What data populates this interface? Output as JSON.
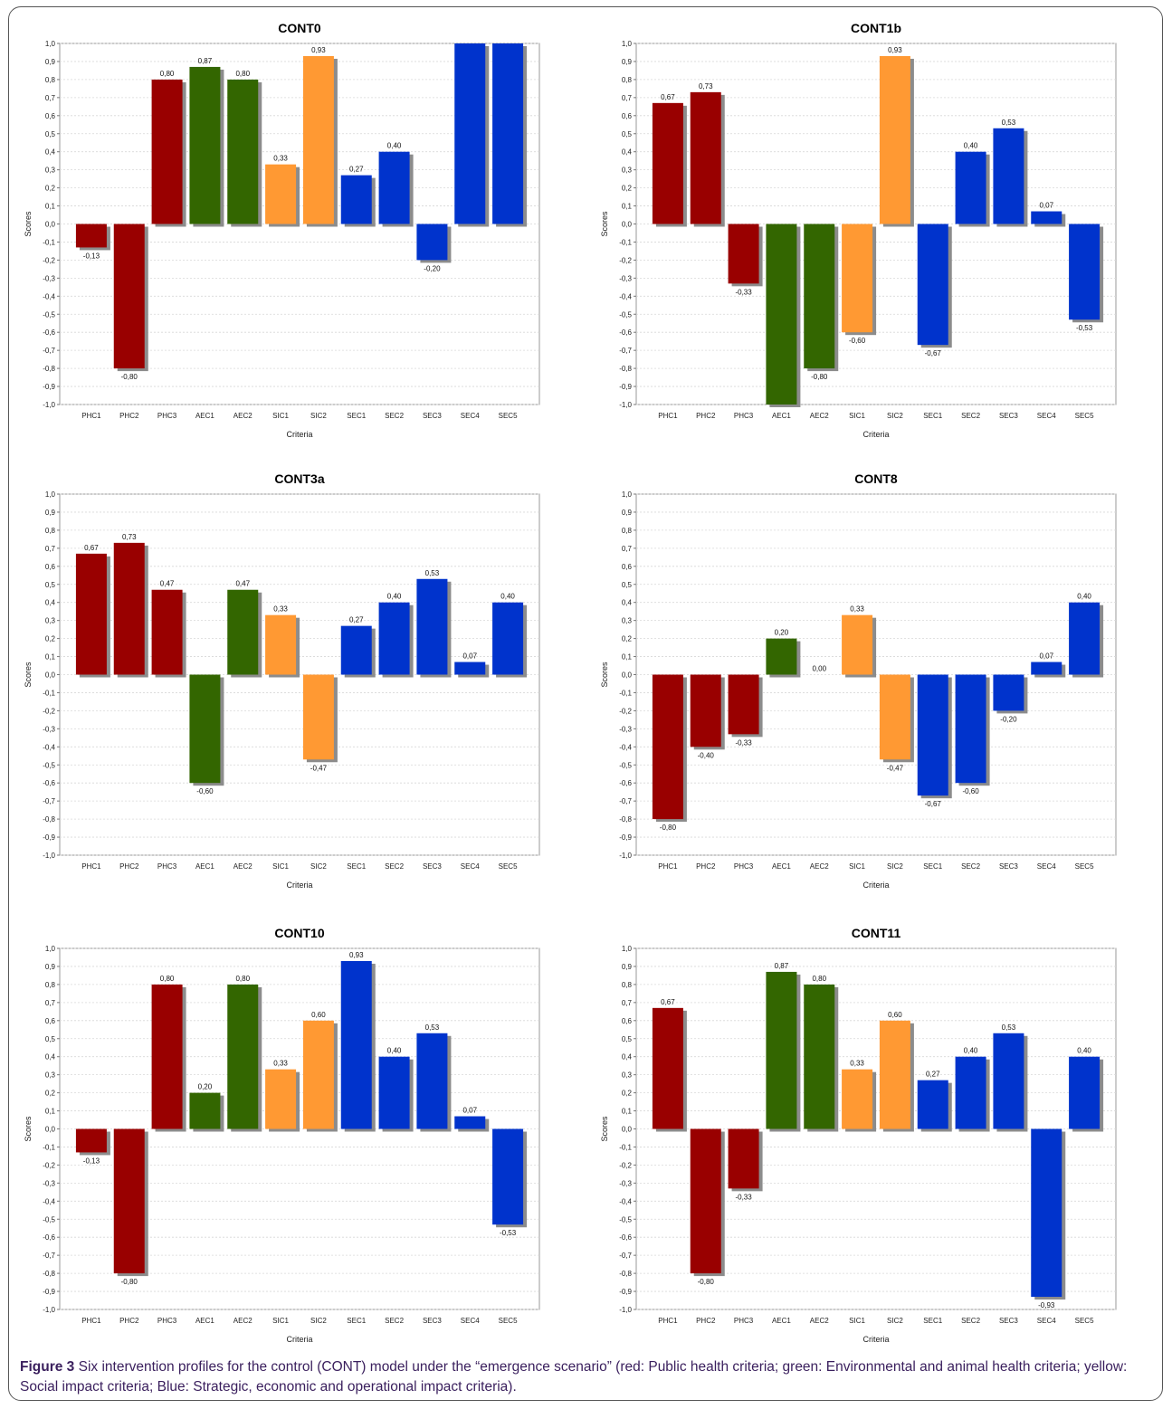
{
  "figure": {
    "label": "Figure 3",
    "caption": "Six intervention profiles for the control (CONT) model under the “emergence scenario” (red: Public health criteria; green: Environmental and animal health criteria; yellow: Social impact criteria; Blue: Strategic, economic and operational impact criteria)."
  },
  "colors": {
    "public_health": "#990000",
    "environmental_animal_health": "#336600",
    "social_impact": "#ff9933",
    "strategic_economic_operational": "#0033cc",
    "bar_shadow": "#8c8c8c",
    "grid": "#d8d8d8"
  },
  "axis_ticks": [
    "1,0",
    "0,9",
    "0,8",
    "0,7",
    "0,6",
    "0,5",
    "0,4",
    "0,3",
    "0,2",
    "0,1",
    "0,0",
    "-0,1",
    "-0,2",
    "-0,3",
    "-0,4",
    "-0,5",
    "-0,6",
    "-0,7",
    "-0,8",
    "-0,9",
    "-1,0"
  ],
  "chart_data": [
    {
      "type": "bar",
      "title": "CONT0",
      "xlabel": "Criteria",
      "ylabel": "Scores",
      "ylim": [
        -1,
        1
      ],
      "categories": [
        "PHC1",
        "PHC2",
        "PHC3",
        "AEC1",
        "AEC2",
        "SIC1",
        "SIC2",
        "SEC1",
        "SEC2",
        "SEC3",
        "SEC4",
        "SEC5"
      ],
      "values": [
        -0.13,
        -0.8,
        0.8,
        0.87,
        0.8,
        0.33,
        0.93,
        0.27,
        0.4,
        -0.2,
        1.0,
        1.0
      ],
      "labels": [
        "-0,13",
        "-0,80",
        "0,80",
        "0,87",
        "0,80",
        "0,33",
        "0,93",
        "0,27",
        "0,40",
        "-0,20",
        "",
        ""
      ],
      "groups": [
        "public_health",
        "public_health",
        "public_health",
        "environmental_animal_health",
        "environmental_animal_health",
        "social_impact",
        "social_impact",
        "strategic_economic_operational",
        "strategic_economic_operational",
        "strategic_economic_operational",
        "strategic_economic_operational",
        "strategic_economic_operational"
      ]
    },
    {
      "type": "bar",
      "title": "CONT1b",
      "xlabel": "Criteria",
      "ylabel": "Scores",
      "ylim": [
        -1,
        1
      ],
      "categories": [
        "PHC1",
        "PHC2",
        "PHC3",
        "AEC1",
        "AEC2",
        "SIC1",
        "SIC2",
        "SEC1",
        "SEC2",
        "SEC3",
        "SEC4",
        "SEC5"
      ],
      "values": [
        0.67,
        0.73,
        -0.33,
        -1.0,
        -0.8,
        -0.6,
        0.93,
        -0.67,
        0.4,
        0.53,
        0.07,
        -0.53
      ],
      "labels": [
        "0,67",
        "0,73",
        "-0,33",
        "",
        "-0,80",
        "-0,60",
        "0,93",
        "-0,67",
        "0,40",
        "0,53",
        "0,07",
        "-0,53"
      ],
      "groups": [
        "public_health",
        "public_health",
        "public_health",
        "environmental_animal_health",
        "environmental_animal_health",
        "social_impact",
        "social_impact",
        "strategic_economic_operational",
        "strategic_economic_operational",
        "strategic_economic_operational",
        "strategic_economic_operational",
        "strategic_economic_operational"
      ]
    },
    {
      "type": "bar",
      "title": "CONT3a",
      "xlabel": "Criteria",
      "ylabel": "Scores",
      "ylim": [
        -1,
        1
      ],
      "categories": [
        "PHC1",
        "PHC2",
        "PHC3",
        "AEC1",
        "AEC2",
        "SIC1",
        "SIC2",
        "SEC1",
        "SEC2",
        "SEC3",
        "SEC4",
        "SEC5"
      ],
      "values": [
        0.67,
        0.73,
        0.47,
        -0.6,
        0.47,
        0.33,
        -0.47,
        0.27,
        0.4,
        0.53,
        0.07,
        0.4
      ],
      "labels": [
        "0,67",
        "0,73",
        "0,47",
        "-0,60",
        "0,47",
        "0,33",
        "-0,47",
        "0,27",
        "0,40",
        "0,53",
        "0,07",
        "0,40"
      ],
      "groups": [
        "public_health",
        "public_health",
        "public_health",
        "environmental_animal_health",
        "environmental_animal_health",
        "social_impact",
        "social_impact",
        "strategic_economic_operational",
        "strategic_economic_operational",
        "strategic_economic_operational",
        "strategic_economic_operational",
        "strategic_economic_operational"
      ]
    },
    {
      "type": "bar",
      "title": "CONT8",
      "xlabel": "Criteria",
      "ylabel": "Scores",
      "ylim": [
        -1,
        1
      ],
      "categories": [
        "PHC1",
        "PHC2",
        "PHC3",
        "AEC1",
        "AEC2",
        "SIC1",
        "SIC2",
        "SEC1",
        "SEC2",
        "SEC3",
        "SEC4",
        "SEC5"
      ],
      "values": [
        -0.8,
        -0.4,
        -0.33,
        0.2,
        0.0,
        0.33,
        -0.47,
        -0.67,
        -0.6,
        -0.2,
        0.07,
        0.4
      ],
      "labels": [
        "-0,80",
        "-0,40",
        "-0,33",
        "0,20",
        "0,00",
        "0,33",
        "-0,47",
        "-0,67",
        "-0,60",
        "-0,20",
        "0,07",
        "0,40"
      ],
      "groups": [
        "public_health",
        "public_health",
        "public_health",
        "environmental_animal_health",
        "environmental_animal_health",
        "social_impact",
        "social_impact",
        "strategic_economic_operational",
        "strategic_economic_operational",
        "strategic_economic_operational",
        "strategic_economic_operational",
        "strategic_economic_operational"
      ]
    },
    {
      "type": "bar",
      "title": "CONT10",
      "xlabel": "Criteria",
      "ylabel": "Scores",
      "ylim": [
        -1,
        1
      ],
      "categories": [
        "PHC1",
        "PHC2",
        "PHC3",
        "AEC1",
        "AEC2",
        "SIC1",
        "SIC2",
        "SEC1",
        "SEC2",
        "SEC3",
        "SEC4",
        "SEC5"
      ],
      "values": [
        -0.13,
        -0.8,
        0.8,
        0.2,
        0.8,
        0.33,
        0.6,
        0.93,
        0.4,
        0.53,
        0.07,
        -0.53
      ],
      "labels": [
        "-0,13",
        "-0,80",
        "0,80",
        "0,20",
        "0,80",
        "0,33",
        "0,60",
        "0,93",
        "0,40",
        "0,53",
        "0,07",
        "-0,53"
      ],
      "groups": [
        "public_health",
        "public_health",
        "public_health",
        "environmental_animal_health",
        "environmental_animal_health",
        "social_impact",
        "social_impact",
        "strategic_economic_operational",
        "strategic_economic_operational",
        "strategic_economic_operational",
        "strategic_economic_operational",
        "strategic_economic_operational"
      ]
    },
    {
      "type": "bar",
      "title": "CONT11",
      "xlabel": "Criteria",
      "ylabel": "Scores",
      "ylim": [
        -1,
        1
      ],
      "categories": [
        "PHC1",
        "PHC2",
        "PHC3",
        "AEC1",
        "AEC2",
        "SIC1",
        "SIC2",
        "SEC1",
        "SEC2",
        "SEC3",
        "SEC4",
        "SEC5"
      ],
      "values": [
        0.67,
        -0.8,
        -0.33,
        0.87,
        0.8,
        0.33,
        0.6,
        0.27,
        0.4,
        0.53,
        -0.93,
        0.4
      ],
      "labels": [
        "0,67",
        "-0,80",
        "-0,33",
        "0,87",
        "0,80",
        "0,33",
        "0,60",
        "0,27",
        "0,40",
        "0,53",
        "-0,93",
        "0,40"
      ],
      "groups": [
        "public_health",
        "public_health",
        "public_health",
        "environmental_animal_health",
        "environmental_animal_health",
        "social_impact",
        "social_impact",
        "strategic_economic_operational",
        "strategic_economic_operational",
        "strategic_economic_operational",
        "strategic_economic_operational",
        "strategic_economic_operational"
      ]
    }
  ]
}
